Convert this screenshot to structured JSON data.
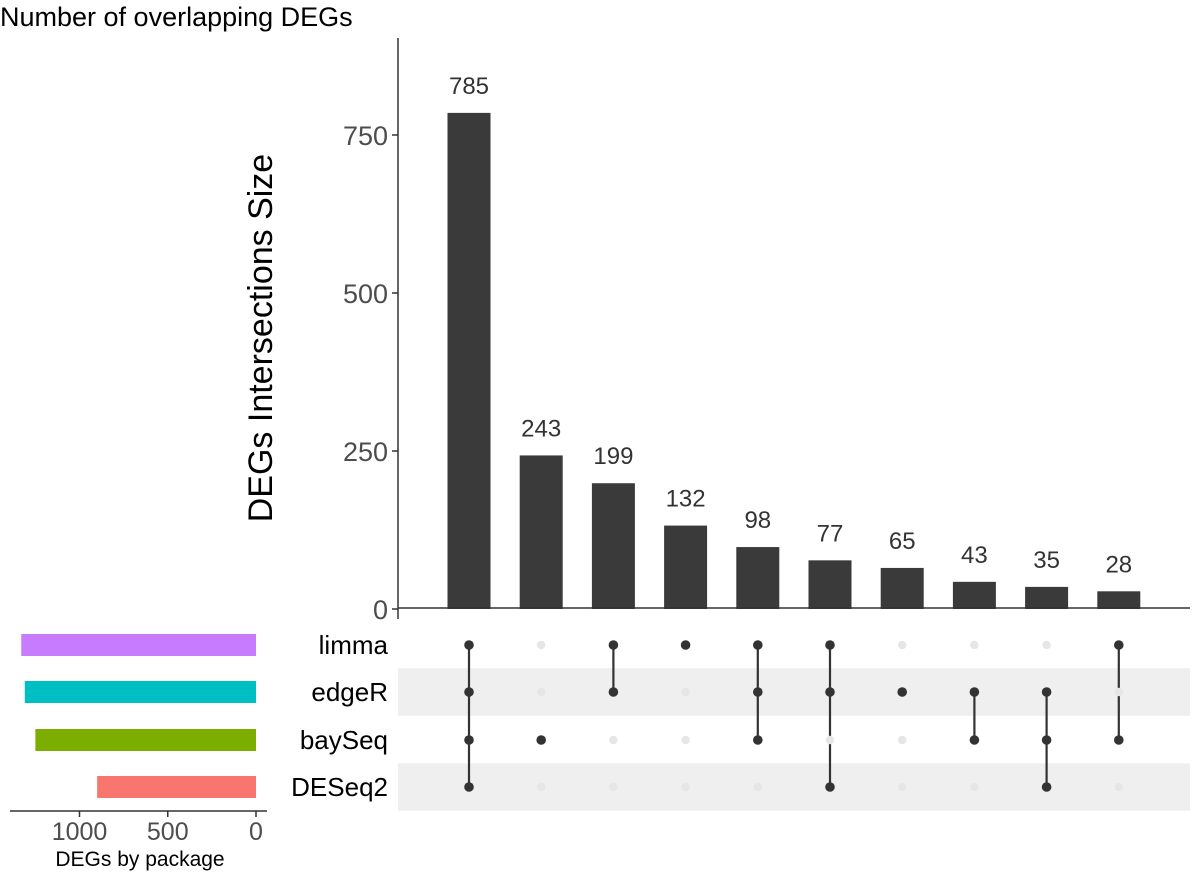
{
  "title": "Number of overlapping DEGs",
  "chart_data": [
    {
      "type": "bar",
      "ylabel": "DEGs Intersections Size",
      "ylim": [
        0,
        900
      ],
      "yticks": [
        0,
        250,
        500,
        750
      ],
      "bar_color": "#3a3a3a",
      "values": [
        785,
        243,
        199,
        132,
        98,
        77,
        65,
        43,
        35,
        28
      ],
      "value_labels": [
        "785",
        "243",
        "199",
        "132",
        "98",
        "77",
        "65",
        "43",
        "35",
        "28"
      ]
    },
    {
      "type": "bar",
      "orientation": "horizontal",
      "xlabel": "DEGs by package",
      "xaxis_reversed": true,
      "xticks": [
        1000,
        500,
        0
      ],
      "xtick_labels": [
        "1000",
        "500",
        "0"
      ],
      "sets": [
        "limma",
        "edgeR",
        "baySeq",
        "DESeq2"
      ],
      "values": [
        1330,
        1310,
        1250,
        900
      ],
      "colors": [
        "#c77cff",
        "#00bfc4",
        "#7cae00",
        "#f8766d"
      ]
    }
  ],
  "intersections": [
    [
      "limma",
      "edgeR",
      "baySeq",
      "DESeq2"
    ],
    [
      "baySeq"
    ],
    [
      "limma",
      "edgeR"
    ],
    [
      "limma"
    ],
    [
      "limma",
      "edgeR",
      "baySeq"
    ],
    [
      "limma",
      "edgeR",
      "DESeq2"
    ],
    [
      "edgeR"
    ],
    [
      "edgeR",
      "baySeq"
    ],
    [
      "edgeR",
      "baySeq",
      "DESeq2"
    ],
    [
      "limma",
      "baySeq"
    ]
  ],
  "matrix_colors": {
    "dot_on": "#333333",
    "dot_off": "#e6e6e6",
    "stripe": "#efefef"
  }
}
